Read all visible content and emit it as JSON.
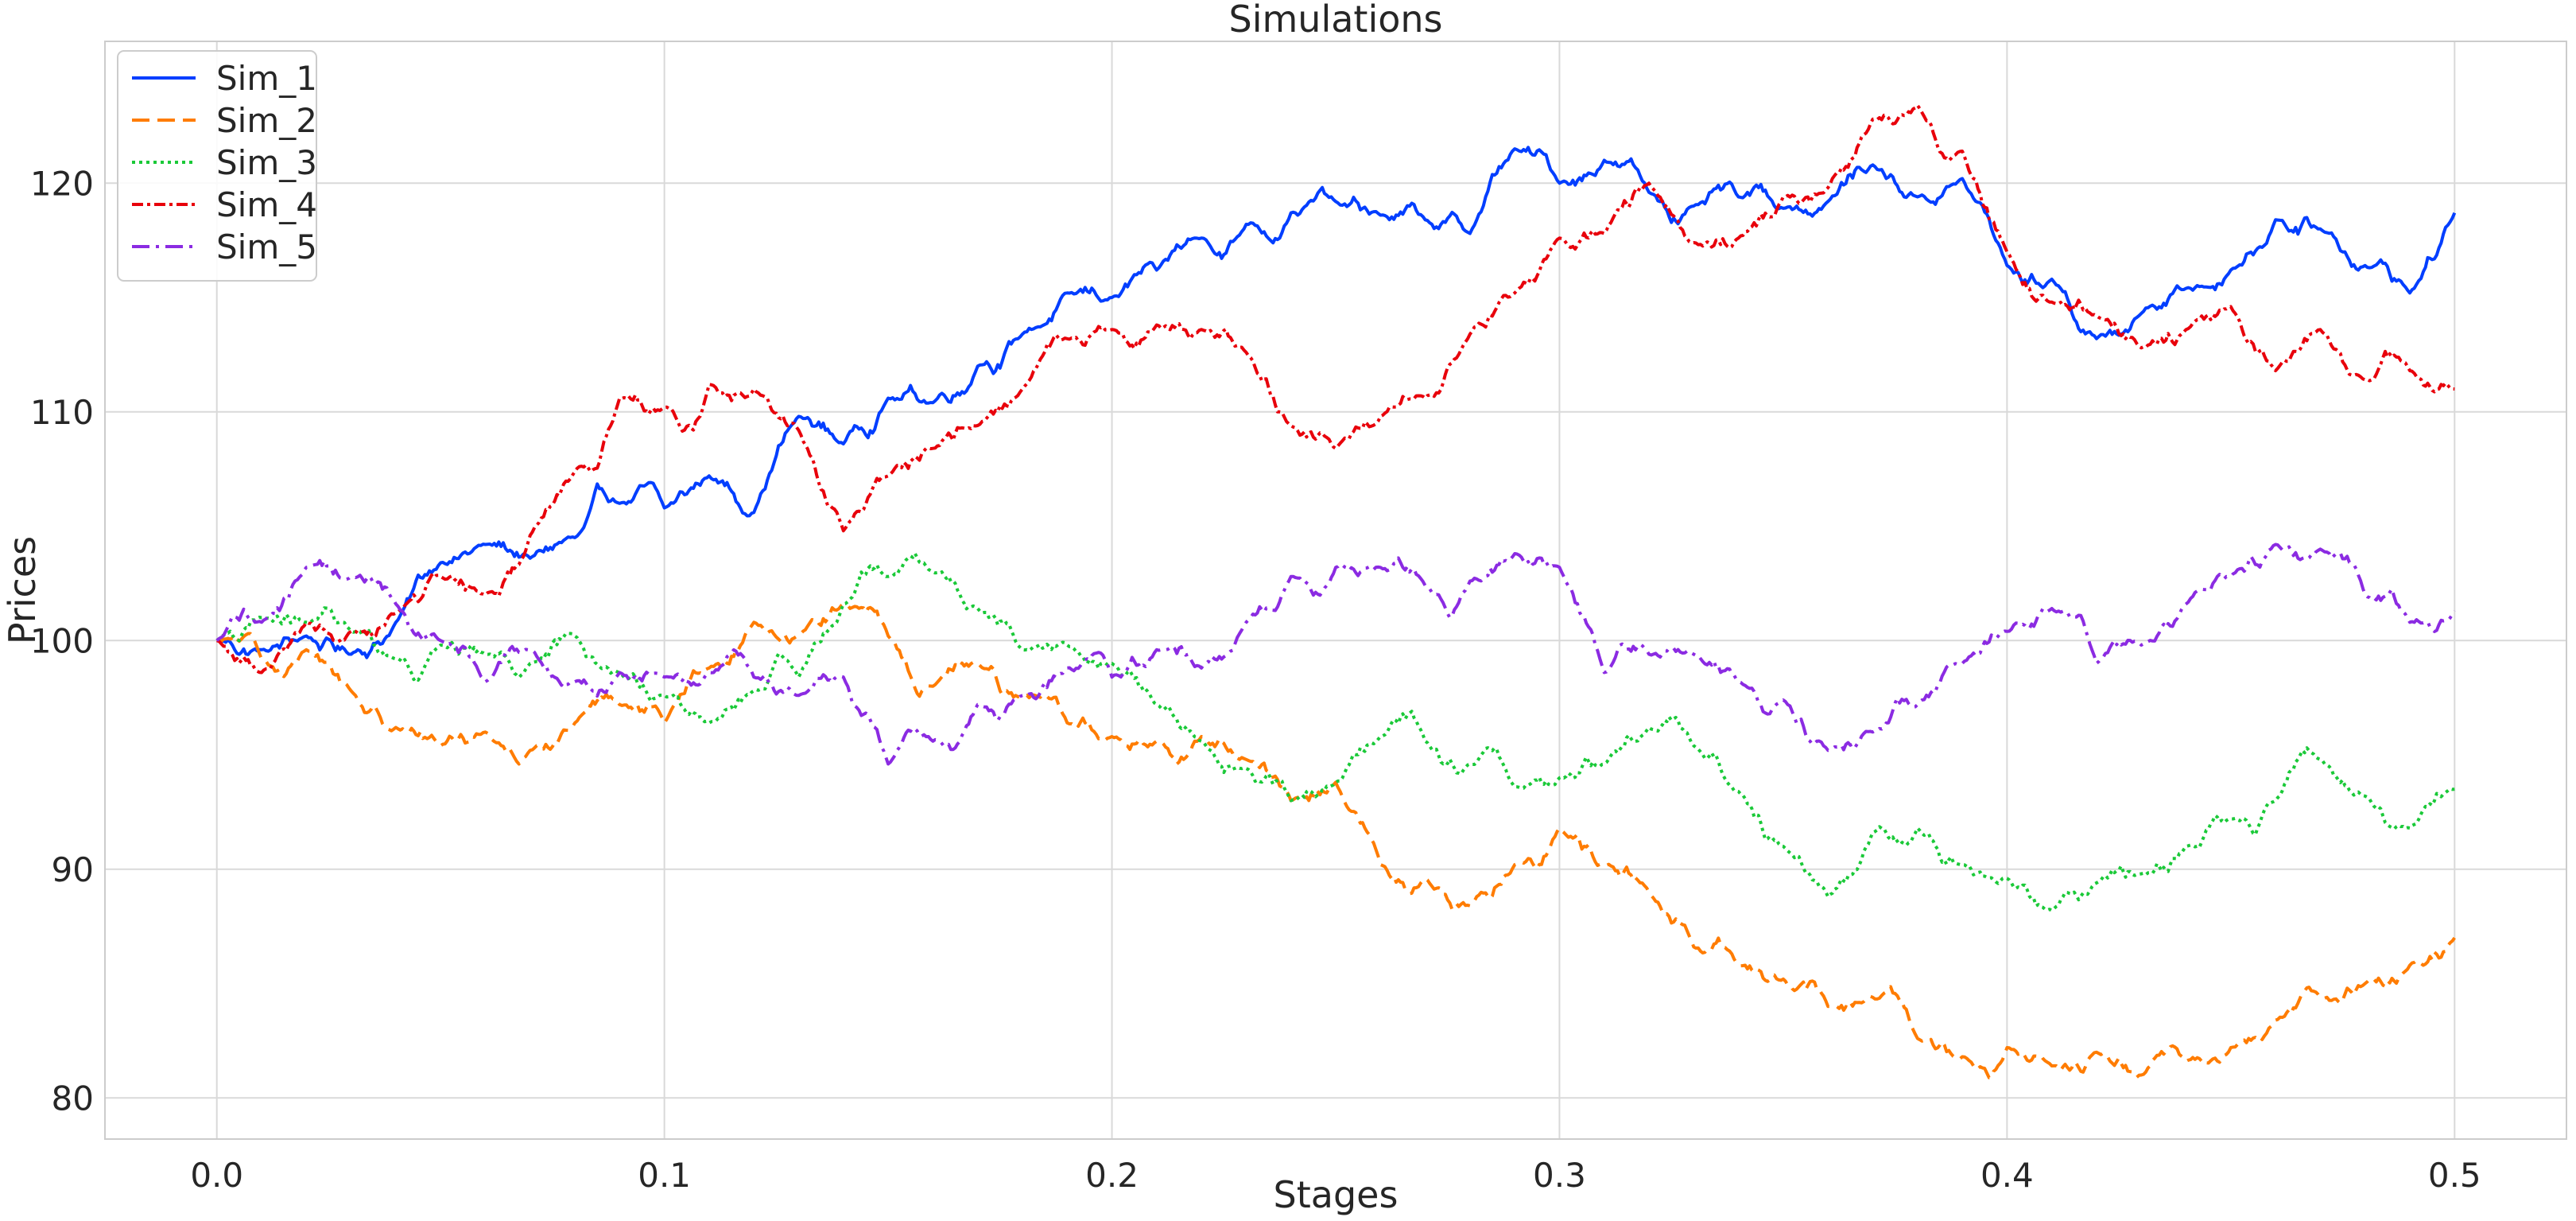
{
  "chart_data": {
    "type": "line",
    "title": "Simulations",
    "xlabel": "Stages",
    "ylabel": "Prices",
    "xlim": [
      -0.025,
      0.525
    ],
    "ylim": [
      78.2,
      126.2
    ],
    "xticks": [
      0.0,
      0.1,
      0.2,
      0.3,
      0.4,
      0.5
    ],
    "xtick_labels": [
      "0.0",
      "0.1",
      "0.2",
      "0.3",
      "0.4",
      "0.5"
    ],
    "yticks": [
      80,
      90,
      100,
      110,
      120
    ],
    "ytick_labels": [
      "80",
      "90",
      "100",
      "110",
      "120"
    ],
    "grid": true,
    "legend_position": "top-left",
    "series": [
      {
        "name": "Sim_1",
        "color": "#023eff",
        "dash": "solid",
        "x": [
          0.0,
          0.01,
          0.02,
          0.03,
          0.04,
          0.05,
          0.06,
          0.07,
          0.08,
          0.09,
          0.1,
          0.11,
          0.12,
          0.13,
          0.14,
          0.15,
          0.16,
          0.17,
          0.18,
          0.19,
          0.2,
          0.21,
          0.22,
          0.23,
          0.24,
          0.25,
          0.26,
          0.27,
          0.28,
          0.29,
          0.3,
          0.31,
          0.32,
          0.33,
          0.34,
          0.35,
          0.36,
          0.37,
          0.38,
          0.39,
          0.4,
          0.41,
          0.42,
          0.43,
          0.44,
          0.45,
          0.46,
          0.47,
          0.48,
          0.49,
          0.5
        ],
        "y": [
          100.0,
          99.6,
          100.2,
          99.4,
          100.8,
          103.4,
          104.2,
          103.6,
          104.5,
          106.0,
          105.8,
          107.2,
          105.6,
          109.8,
          108.6,
          110.6,
          110.4,
          112.0,
          113.4,
          115.2,
          115.0,
          116.2,
          117.6,
          118.2,
          118.7,
          119.2,
          118.6,
          118.4,
          117.8,
          121.5,
          120.0,
          121.0,
          119.6,
          119.0,
          119.4,
          118.9,
          119.2,
          120.8,
          119.4,
          120.2,
          116.4,
          115.8,
          113.2,
          114.3,
          115.4,
          116.2,
          118.4,
          118.0,
          116.4,
          115.2,
          118.7
        ]
      },
      {
        "name": "Sim_2",
        "color": "#ff7c00",
        "dash": "dashed",
        "x": [
          0.0,
          0.01,
          0.02,
          0.03,
          0.04,
          0.05,
          0.06,
          0.07,
          0.08,
          0.09,
          0.1,
          0.11,
          0.12,
          0.13,
          0.14,
          0.15,
          0.16,
          0.17,
          0.18,
          0.19,
          0.2,
          0.21,
          0.22,
          0.23,
          0.24,
          0.25,
          0.26,
          0.27,
          0.28,
          0.29,
          0.3,
          0.31,
          0.32,
          0.33,
          0.34,
          0.35,
          0.36,
          0.37,
          0.38,
          0.39,
          0.4,
          0.41,
          0.42,
          0.43,
          0.44,
          0.45,
          0.46,
          0.47,
          0.48,
          0.49,
          0.5
        ],
        "y": [
          100.0,
          99.2,
          99.6,
          97.8,
          96.2,
          95.4,
          96.0,
          95.2,
          96.4,
          97.2,
          96.4,
          98.8,
          100.8,
          100.2,
          101.6,
          100.2,
          98.0,
          99.0,
          97.6,
          96.4,
          95.8,
          95.6,
          95.8,
          94.8,
          93.0,
          93.8,
          90.2,
          89.6,
          88.4,
          90.2,
          91.8,
          90.2,
          89.0,
          86.6,
          85.8,
          85.2,
          84.0,
          84.4,
          82.6,
          81.8,
          82.2,
          81.4,
          82.0,
          81.0,
          81.6,
          82.2,
          83.4,
          84.4,
          85.0,
          85.8,
          87.0
        ]
      },
      {
        "name": "Sim_3",
        "color": "#1ac938",
        "dash": "dotted",
        "x": [
          0.0,
          0.01,
          0.02,
          0.03,
          0.04,
          0.05,
          0.06,
          0.07,
          0.08,
          0.09,
          0.1,
          0.11,
          0.12,
          0.13,
          0.14,
          0.15,
          0.16,
          0.17,
          0.18,
          0.19,
          0.2,
          0.21,
          0.22,
          0.23,
          0.24,
          0.25,
          0.26,
          0.27,
          0.28,
          0.29,
          0.3,
          0.31,
          0.32,
          0.33,
          0.34,
          0.35,
          0.36,
          0.37,
          0.38,
          0.39,
          0.4,
          0.41,
          0.42,
          0.43,
          0.44,
          0.45,
          0.46,
          0.47,
          0.48,
          0.49,
          0.5
        ],
        "y": [
          100.0,
          101.0,
          100.8,
          100.4,
          99.2,
          99.8,
          99.4,
          99.0,
          100.2,
          98.6,
          97.6,
          96.4,
          97.8,
          98.4,
          101.6,
          102.8,
          103.0,
          101.4,
          99.6,
          99.8,
          99.0,
          97.2,
          95.6,
          94.4,
          93.0,
          93.8,
          95.8,
          95.6,
          94.6,
          93.6,
          94.0,
          94.6,
          96.2,
          95.4,
          93.4,
          91.0,
          88.8,
          91.6,
          91.8,
          90.2,
          89.6,
          88.2,
          89.4,
          89.8,
          91.0,
          92.2,
          93.0,
          94.8,
          93.2,
          91.8,
          93.5
        ]
      },
      {
        "name": "Sim_4",
        "color": "#e8000b",
        "dash": "dashdot-dense",
        "x": [
          0.0,
          0.01,
          0.02,
          0.03,
          0.04,
          0.05,
          0.06,
          0.07,
          0.08,
          0.09,
          0.1,
          0.11,
          0.12,
          0.13,
          0.14,
          0.15,
          0.16,
          0.17,
          0.18,
          0.19,
          0.2,
          0.21,
          0.22,
          0.23,
          0.24,
          0.25,
          0.26,
          0.27,
          0.28,
          0.29,
          0.3,
          0.31,
          0.32,
          0.33,
          0.34,
          0.35,
          0.36,
          0.37,
          0.38,
          0.39,
          0.4,
          0.41,
          0.42,
          0.43,
          0.44,
          0.45,
          0.46,
          0.47,
          0.48,
          0.49,
          0.5
        ],
        "y": [
          100.0,
          98.6,
          100.8,
          100.4,
          101.2,
          102.8,
          102.0,
          104.6,
          107.4,
          110.6,
          110.2,
          111.2,
          111.0,
          109.2,
          104.8,
          107.2,
          108.4,
          109.4,
          111.0,
          113.2,
          113.6,
          113.8,
          113.6,
          112.6,
          109.4,
          108.4,
          109.8,
          110.6,
          113.4,
          115.2,
          117.6,
          117.8,
          120.0,
          117.4,
          117.6,
          119.4,
          119.8,
          122.8,
          123.4,
          121.4,
          117.0,
          114.8,
          114.2,
          112.8,
          113.6,
          114.6,
          111.8,
          113.6,
          111.4,
          111.8,
          111.0
        ]
      },
      {
        "name": "Sim_5",
        "color": "#8b2be2",
        "dash": "dashdot",
        "x": [
          0.0,
          0.01,
          0.02,
          0.03,
          0.04,
          0.05,
          0.06,
          0.07,
          0.08,
          0.09,
          0.1,
          0.11,
          0.12,
          0.13,
          0.14,
          0.15,
          0.16,
          0.17,
          0.18,
          0.19,
          0.2,
          0.21,
          0.22,
          0.23,
          0.24,
          0.25,
          0.26,
          0.27,
          0.28,
          0.29,
          0.3,
          0.31,
          0.32,
          0.33,
          0.34,
          0.35,
          0.36,
          0.37,
          0.38,
          0.39,
          0.4,
          0.41,
          0.42,
          0.43,
          0.44,
          0.45,
          0.46,
          0.47,
          0.48,
          0.49,
          0.5
        ],
        "y": [
          100.0,
          100.8,
          103.2,
          102.8,
          101.6,
          100.0,
          98.2,
          99.6,
          98.2,
          98.6,
          98.4,
          98.6,
          98.4,
          97.6,
          98.4,
          94.6,
          95.6,
          97.2,
          97.6,
          98.8,
          98.4,
          99.6,
          98.8,
          100.8,
          102.8,
          103.2,
          103.2,
          102.4,
          102.6,
          103.8,
          103.2,
          98.6,
          99.4,
          99.4,
          98.2,
          97.4,
          95.2,
          96.0,
          97.2,
          99.0,
          100.4,
          101.4,
          99.0,
          99.8,
          101.6,
          102.8,
          104.2,
          104.0,
          102.0,
          100.8,
          101.3
        ]
      }
    ]
  }
}
